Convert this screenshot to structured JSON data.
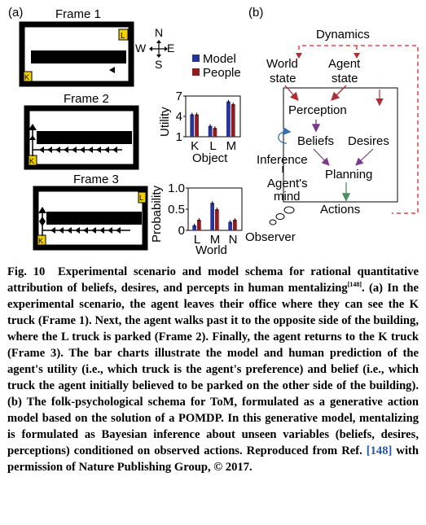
{
  "panel_a": {
    "panel_label": "(a)",
    "frame1_title": "Frame 1",
    "frame2_title": "Frame 2",
    "frame3_title": "Frame 3",
    "truck_k": "K",
    "truck_l": "L",
    "compass": {
      "n": "N",
      "s": "S",
      "e": "E",
      "w": "W"
    },
    "legend": {
      "model": "Model",
      "people": "People"
    },
    "colors": {
      "model": "#27349a",
      "people": "#8c1e1e",
      "frame_border": "#000000",
      "truck_fill": "#f0d000",
      "path_marks": "#000000"
    }
  },
  "panel_b": {
    "panel_label": "(b)",
    "dynamics": "Dynamics",
    "world_state_1": "World",
    "world_state_2": "state",
    "agent_state_1": "Agent",
    "agent_state_2": "state",
    "perception": "Perception",
    "beliefs": "Beliefs",
    "desires": "Desires",
    "inference": "Inference",
    "planning": "Planning",
    "agents_mind_1": "Agent's",
    "agents_mind_2": "mind",
    "actions": "Actions",
    "observer": "Observer",
    "colors": {
      "dashed": "#e0454a",
      "arrow": "#b02e35",
      "beliefs_arrow": "#7a3b86",
      "inference_arrow": "#3a6fb0",
      "actions_arrow": "#4a8f5e"
    }
  },
  "chart_data": [
    {
      "type": "bar",
      "categories": [
        "K",
        "L",
        "M"
      ],
      "series": [
        {
          "name": "Model",
          "values": [
            4.3,
            2.6,
            6.2
          ]
        },
        {
          "name": "People",
          "values": [
            4.3,
            2.3,
            5.8
          ]
        }
      ],
      "xlabel": "Object",
      "ylabel": "Utility",
      "yticks": [
        "1",
        "4",
        "7"
      ],
      "ylim": [
        1,
        7
      ]
    },
    {
      "type": "bar",
      "categories": [
        "L",
        "M",
        "N"
      ],
      "series": [
        {
          "name": "Model",
          "values": [
            0.12,
            0.65,
            0.2
          ]
        },
        {
          "name": "People",
          "values": [
            0.25,
            0.5,
            0.25
          ]
        }
      ],
      "xlabel": "World",
      "ylabel": "Probability",
      "yticks": [
        "0",
        "0.5",
        "1.0"
      ],
      "ylim": [
        0,
        1
      ]
    }
  ],
  "caption": {
    "fig_label": "Fig. 10",
    "text_1": "Experimental scenario and model schema for rational quantitative attribution of beliefs, desires, and percepts in human mentalizing",
    "sup_ref": "[148]",
    "text_2": ". (a) In the experimental scenario, the agent leaves their office where they can see the K truck (Frame 1). Next, the agent walks past it to the opposite side of the building, where the L truck is parked (Frame 2). Finally, the agent returns to the K truck (Frame 3). The bar charts illustrate the model and human prediction of the agent's utility (i.e., which truck is the agent's preference) and belief (i.e., which truck the agent initially believed to be parked on the other side of the building). (b) The folk-psychological schema for ToM, formulated as a generative action model based on the solution of a POMDP. In this generative model, mentalizing is formulated as Bayesian inference about unseen variables (beliefs, desires, perceptions) conditioned on observed actions. Reproduced from Ref. ",
    "ref": "[148]",
    "text_3": " with permission of Nature Publishing Group, © 2017."
  }
}
